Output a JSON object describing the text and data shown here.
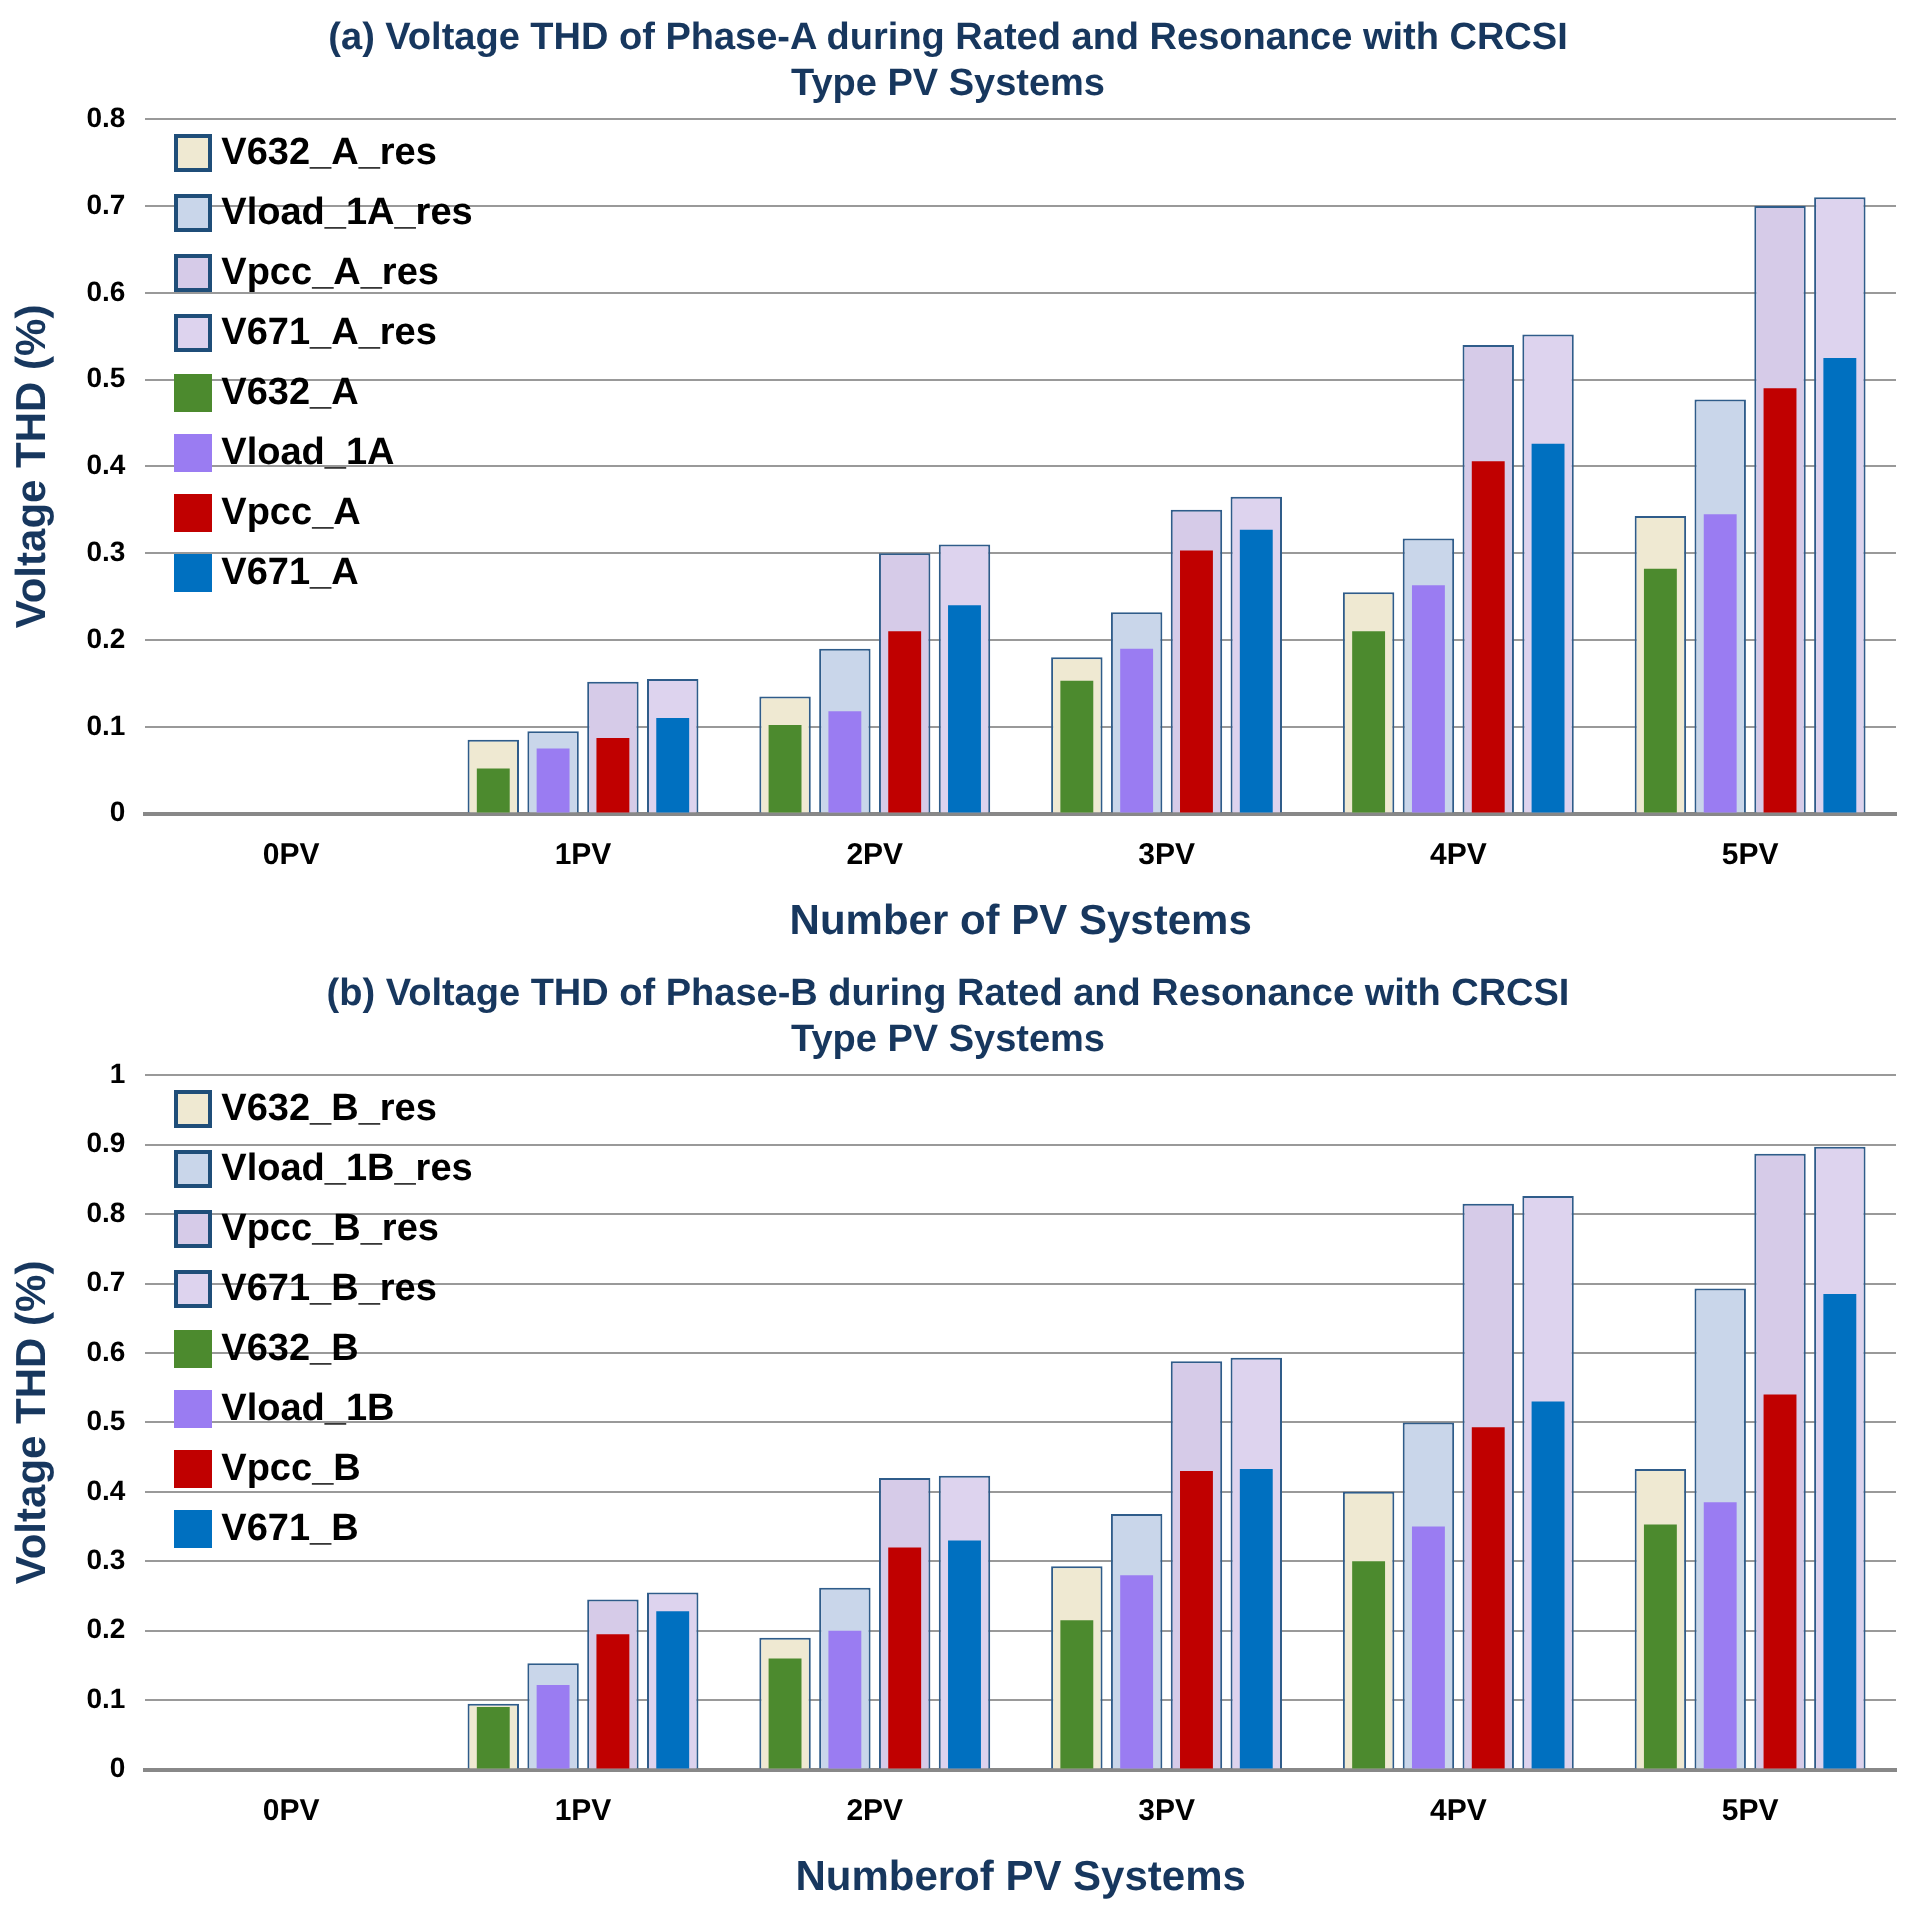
{
  "chart_data": [
    {
      "type": "bar",
      "title": [
        "(a) Voltage THD of Phase-A during Rated and Resonance with CRCSI",
        "Type PV Systems"
      ],
      "xlabel": "Number of PV Systems",
      "ylabel": "Voltage THD (%)",
      "categories": [
        "0PV",
        "1PV",
        "2PV",
        "3PV",
        "4PV",
        "5PV"
      ],
      "ylim": [
        0,
        0.8
      ],
      "yticks": [
        0,
        0.1,
        0.2,
        0.3,
        0.4,
        0.5,
        0.6,
        0.7,
        0.8
      ],
      "grid": "y",
      "legend": "top left",
      "series": [
        {
          "name": "V632_A_res",
          "color": "#efe9d2",
          "values": [
            0,
            0.085,
            0.135,
            0.18,
            0.255,
            0.343
          ]
        },
        {
          "name": "Vload_1A_res",
          "color": "#c9d6ea",
          "values": [
            0,
            0.095,
            0.19,
            0.232,
            0.317,
            0.477
          ]
        },
        {
          "name": "Vpcc_A_res",
          "color": "#d6cbe8",
          "values": [
            0,
            0.152,
            0.3,
            0.35,
            0.54,
            0.7
          ]
        },
        {
          "name": "V671_A_res",
          "color": "#ddd3ee",
          "values": [
            0,
            0.155,
            0.31,
            0.365,
            0.552,
            0.71
          ]
        },
        {
          "name": "V632_A",
          "color": "#4c8a2e",
          "values": [
            0,
            0.052,
            0.102,
            0.153,
            0.21,
            0.282
          ]
        },
        {
          "name": "Vload_1A",
          "color": "#9a7cf2",
          "values": [
            0,
            0.075,
            0.118,
            0.19,
            0.263,
            0.345
          ]
        },
        {
          "name": "Vpcc_A",
          "color": "#c00000",
          "values": [
            0,
            0.087,
            0.21,
            0.303,
            0.406,
            0.49
          ]
        },
        {
          "name": "V671_A",
          "color": "#0070c0",
          "values": [
            0,
            0.11,
            0.24,
            0.327,
            0.426,
            0.525
          ]
        }
      ]
    },
    {
      "type": "bar",
      "title": [
        "(b) Voltage THD of Phase-B during Rated and Resonance with CRCSI",
        "Type PV Systems"
      ],
      "xlabel": "Numberof PV Systems",
      "ylabel": "Voltage THD (%)",
      "categories": [
        "0PV",
        "1PV",
        "2PV",
        "3PV",
        "4PV",
        "5PV"
      ],
      "ylim": [
        0,
        1
      ],
      "yticks": [
        0,
        0.1,
        0.2,
        0.3,
        0.4,
        0.5,
        0.6,
        0.7,
        0.8,
        0.9,
        1
      ],
      "grid": "y",
      "legend": "top left",
      "series": [
        {
          "name": "V632_B_res",
          "color": "#efe9d2",
          "values": [
            0,
            0.095,
            0.19,
            0.293,
            0.4,
            0.433
          ]
        },
        {
          "name": "Vload_1B_res",
          "color": "#c9d6ea",
          "values": [
            0,
            0.153,
            0.262,
            0.368,
            0.5,
            0.693
          ]
        },
        {
          "name": "Vpcc_B_res",
          "color": "#d6cbe8",
          "values": [
            0,
            0.245,
            0.42,
            0.588,
            0.815,
            0.887
          ]
        },
        {
          "name": "V671_B_res",
          "color": "#ddd3ee",
          "values": [
            0,
            0.255,
            0.423,
            0.593,
            0.826,
            0.897
          ]
        },
        {
          "name": "V632_B",
          "color": "#4c8a2e",
          "values": [
            0,
            0.09,
            0.16,
            0.215,
            0.3,
            0.353
          ]
        },
        {
          "name": "Vload_1B",
          "color": "#9a7cf2",
          "values": [
            0,
            0.122,
            0.2,
            0.28,
            0.35,
            0.385
          ]
        },
        {
          "name": "Vpcc_B",
          "color": "#c00000",
          "values": [
            0,
            0.195,
            0.32,
            0.43,
            0.493,
            0.54
          ]
        },
        {
          "name": "V671_B",
          "color": "#0070c0",
          "values": [
            0,
            0.228,
            0.33,
            0.433,
            0.53,
            0.685
          ]
        }
      ]
    }
  ]
}
